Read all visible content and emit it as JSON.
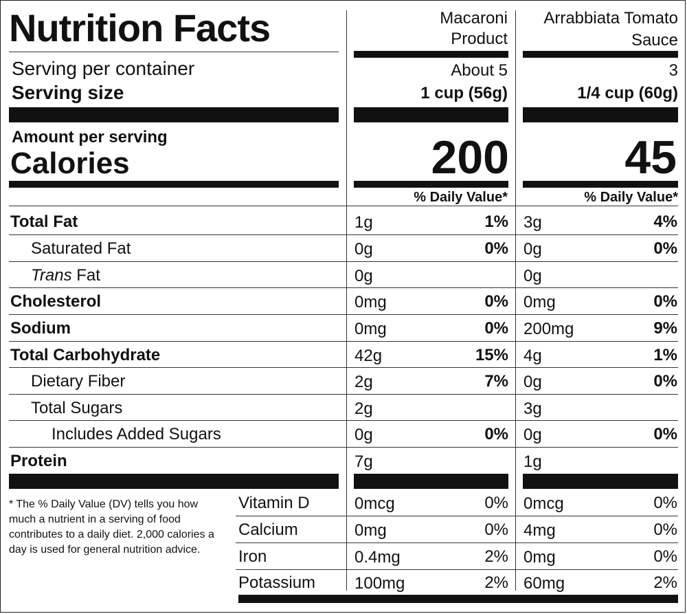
{
  "header": {
    "title": "Nutrition Facts",
    "servings_label": "Serving per container",
    "serving_size_label": "Serving size",
    "amount_label": "Amount per serving",
    "calories_label": "Calories"
  },
  "products": [
    {
      "name_line1": "Macaroni",
      "name_line2": "Product",
      "servings": "About 5",
      "serving_size": "1 cup (56g)",
      "calories": "200",
      "dv_header": "% Daily Value*"
    },
    {
      "name_line1": "Arrabbiata Tomato",
      "name_line2": "Sauce",
      "servings": "3",
      "serving_size": "1/4 cup (60g)",
      "calories": "45",
      "dv_header": "% Daily Value*"
    }
  ],
  "nutrients": [
    {
      "name": "Total Fat",
      "p1_amt": "1g",
      "p1_dv": "1%",
      "p2_amt": "3g",
      "p2_dv": "4%"
    },
    {
      "name": "Saturated Fat",
      "p1_amt": "0g",
      "p1_dv": "0%",
      "p2_amt": "0g",
      "p2_dv": "0%"
    },
    {
      "name_italic": "Trans",
      "name_rest": " Fat",
      "p1_amt": "0g",
      "p1_dv": "",
      "p2_amt": "0g",
      "p2_dv": ""
    },
    {
      "name": "Cholesterol",
      "p1_amt": "0mg",
      "p1_dv": "0%",
      "p2_amt": "0mg",
      "p2_dv": "0%"
    },
    {
      "name": "Sodium",
      "p1_amt": "0mg",
      "p1_dv": "0%",
      "p2_amt": "200mg",
      "p2_dv": "9%"
    },
    {
      "name": "Total Carbohydrate",
      "p1_amt": "42g",
      "p1_dv": "15%",
      "p2_amt": "4g",
      "p2_dv": "1%"
    },
    {
      "name": "Dietary Fiber",
      "p1_amt": "2g",
      "p1_dv": "7%",
      "p2_amt": "0g",
      "p2_dv": "0%"
    },
    {
      "name": "Total Sugars",
      "p1_amt": "2g",
      "p1_dv": "",
      "p2_amt": "3g",
      "p2_dv": ""
    },
    {
      "name": "Includes Added Sugars",
      "p1_amt": "0g",
      "p1_dv": "0%",
      "p2_amt": "0g",
      "p2_dv": "0%"
    },
    {
      "name": "Protein",
      "p1_amt": "7g",
      "p1_dv": "",
      "p2_amt": "1g",
      "p2_dv": ""
    }
  ],
  "vitamins": [
    {
      "name": "Vitamin D",
      "p1_amt": "0mcg",
      "p1_dv": "0%",
      "p2_amt": "0mcg",
      "p2_dv": "0%"
    },
    {
      "name": "Calcium",
      "p1_amt": "0mg",
      "p1_dv": "0%",
      "p2_amt": "4mg",
      "p2_dv": "0%"
    },
    {
      "name": "Iron",
      "p1_amt": "0.4mg",
      "p1_dv": "2%",
      "p2_amt": "0mg",
      "p2_dv": "0%"
    },
    {
      "name": "Potassium",
      "p1_amt": "100mg",
      "p1_dv": "2%",
      "p2_amt": "60mg",
      "p2_dv": "2%"
    }
  ],
  "footnote": "* The % Daily Value (DV) tells you how much a nutrient in a serving of food contributes to a daily diet. 2,000 calories a day is used for general nutrition advice."
}
